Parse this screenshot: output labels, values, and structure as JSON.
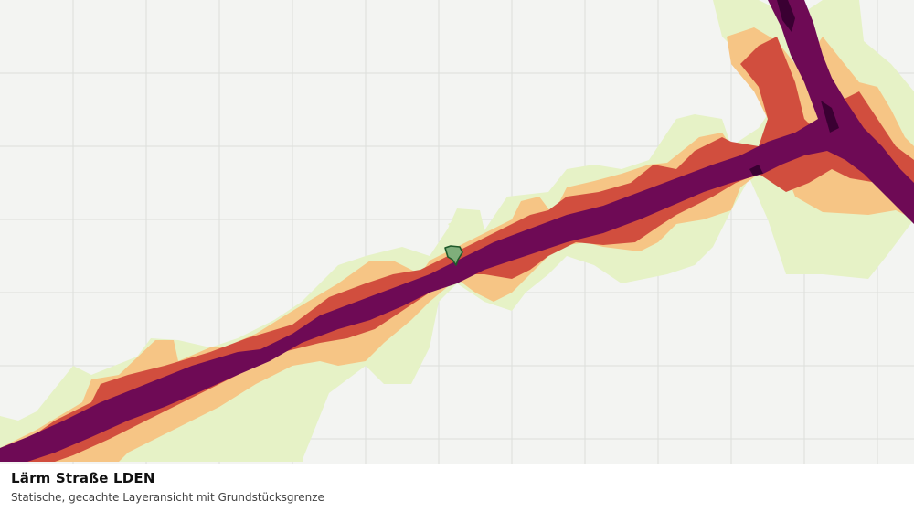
{
  "caption": {
    "title": "Lärm Straße LDEN",
    "subtitle": "Statische, gecachte Layeransicht mit Grundstücksgrenze"
  },
  "legend_colors": {
    "band_lowest": "#e6f2c6",
    "band_low": "#f6c585",
    "band_mid": "#d14e3e",
    "band_high": "#6e0a55",
    "band_highest": "#3a0032",
    "parcel_fill": "#7fae7b",
    "parcel_stroke": "#1f5a2a",
    "gridline": "#dcdedb",
    "background": "#f3f4f2"
  },
  "features": {
    "parcel": "grundstuecksgrenze-parcel"
  }
}
